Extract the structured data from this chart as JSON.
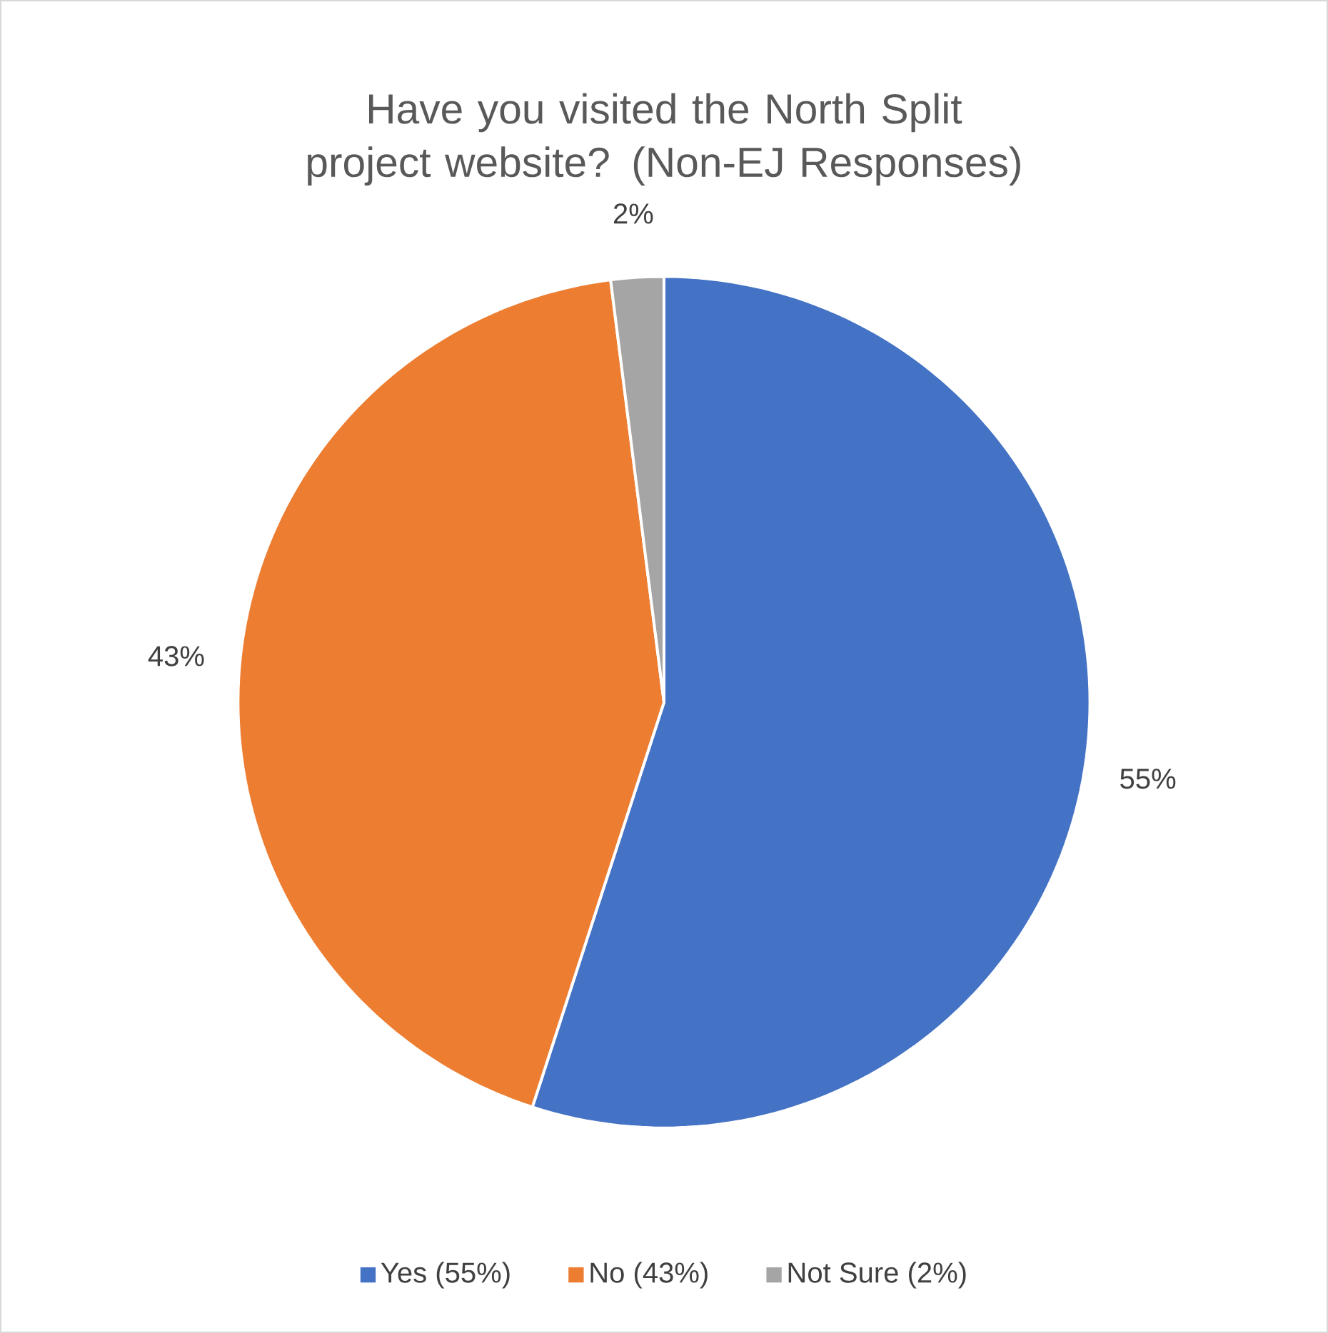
{
  "chart_data": {
    "type": "pie",
    "title": "Have you visited the North Split project website? (Non-EJ Responses)",
    "categories": [
      "Yes (55%)",
      "No (43%)",
      "Not Sure (2%)"
    ],
    "values": [
      55,
      43,
      2
    ],
    "colors": [
      "#4472c4",
      "#ed7d31",
      "#a5a5a5"
    ],
    "value_labels": [
      "55%",
      "43%",
      "2%"
    ],
    "legend": "bottom"
  }
}
